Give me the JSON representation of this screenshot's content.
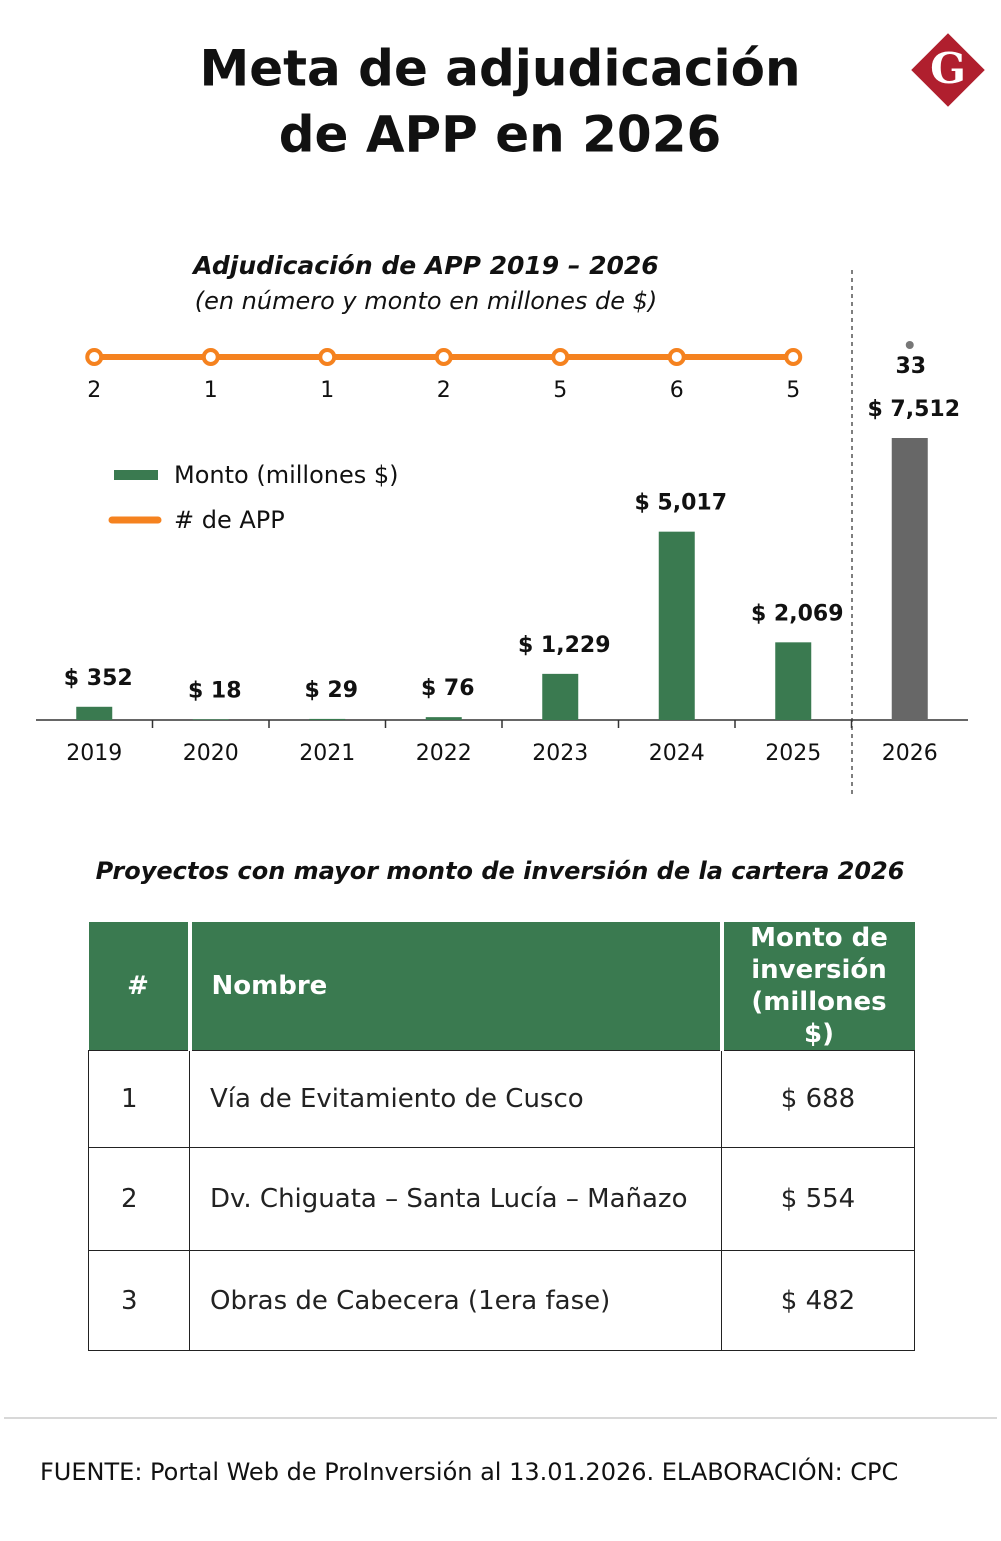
{
  "header": {
    "title_lines": [
      "Meta de adjudicación",
      "de APP en 2026"
    ],
    "logo": "G"
  },
  "chart_data": {
    "type": "bar",
    "title": "Adjudicación de APP 2019 – 2026",
    "subtitle": "(en número y monto en millones de $)",
    "categories": [
      "2019",
      "2020",
      "2021",
      "2022",
      "2023",
      "2024",
      "2025",
      "2026"
    ],
    "series": [
      {
        "name": "Monto (millones $)",
        "color": "#3a7a50",
        "colors": [
          "#3a7a50",
          "#3a7a50",
          "#3a7a50",
          "#3a7a50",
          "#3a7a50",
          "#3a7a50",
          "#3a7a50",
          "#676767"
        ],
        "values": [
          352,
          18,
          29,
          76,
          1229,
          5017,
          2069,
          7512
        ],
        "value_labels": [
          "$ 352",
          "$ 18",
          "$ 29",
          "$ 76",
          "$ 1,229",
          "$ 5,017",
          "$ 2,069",
          "$ 7,512"
        ]
      },
      {
        "name": "# de APP",
        "color": "#f5821f",
        "values": [
          2,
          1,
          1,
          2,
          5,
          6,
          5,
          33
        ]
      }
    ]
  },
  "table": {
    "title": "Proyectos con mayor monto de inversión de la cartera 2026",
    "header_color": "#3a7a50",
    "columns": [
      "#",
      "Nombre",
      "Monto de inversión (millones $)"
    ],
    "rows": [
      [
        "1",
        "Vía de Evitamiento de Cusco",
        "$ 688"
      ],
      [
        "2",
        "Dv. Chiguata – Santa Lucía – Mañazo",
        "$ 554"
      ],
      [
        "3",
        "Obras de Cabecera  (1era fase)",
        "$ 482"
      ]
    ]
  },
  "footer": {
    "source": "FUENTE: Portal Web de ProInversión al 13.01.2026. ELABORACIÓN: CPC"
  }
}
